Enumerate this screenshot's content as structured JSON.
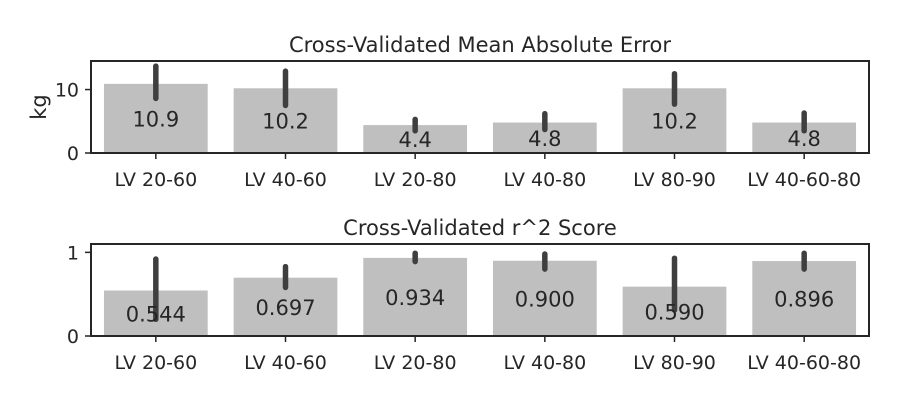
{
  "chart_data": [
    {
      "type": "bar",
      "title": "Cross-Validated Mean Absolute Error",
      "ylabel": "kg",
      "xlabel": "",
      "categories": [
        "LV 20-60",
        "LV 40-60",
        "LV 20-80",
        "LV 40-80",
        "LV 80-90",
        "LV 40-60-80"
      ],
      "values": [
        10.9,
        10.2,
        4.4,
        4.8,
        10.2,
        4.8
      ],
      "value_labels": [
        "10.9",
        "10.2",
        "4.4",
        "4.8",
        "10.2",
        "4.8"
      ],
      "errors": [
        [
          8.6,
          13.7
        ],
        [
          7.5,
          12.9
        ],
        [
          3.5,
          5.3
        ],
        [
          3.7,
          6.2
        ],
        [
          7.7,
          12.5
        ],
        [
          3.5,
          6.3
        ]
      ],
      "ylim": [
        0,
        14.5
      ],
      "yticks": [
        0,
        10
      ],
      "ytick_labels": [
        "0",
        "10"
      ],
      "bar_color": "#bfbfbf",
      "error_color": "#3f3f3f",
      "grid": false
    },
    {
      "type": "bar",
      "title": "Cross-Validated r^2 Score",
      "ylabel": "",
      "xlabel": "",
      "categories": [
        "LV 20-60",
        "LV 40-60",
        "LV 20-80",
        "LV 40-80",
        "LV 80-90",
        "LV 40-60-80"
      ],
      "values": [
        0.544,
        0.697,
        0.934,
        0.9,
        0.59,
        0.896
      ],
      "value_labels": [
        "0.544",
        "0.697",
        "0.934",
        "0.900",
        "0.590",
        "0.896"
      ],
      "errors": [
        [
          0.2,
          0.92
        ],
        [
          0.58,
          0.83
        ],
        [
          0.89,
          0.99
        ],
        [
          0.8,
          0.98
        ],
        [
          0.31,
          0.93
        ],
        [
          0.8,
          0.99
        ]
      ],
      "ylim": [
        0,
        1.1
      ],
      "yticks": [
        0,
        1
      ],
      "ytick_labels": [
        "0",
        "1"
      ],
      "bar_color": "#bfbfbf",
      "error_color": "#3f3f3f",
      "grid": false
    }
  ]
}
